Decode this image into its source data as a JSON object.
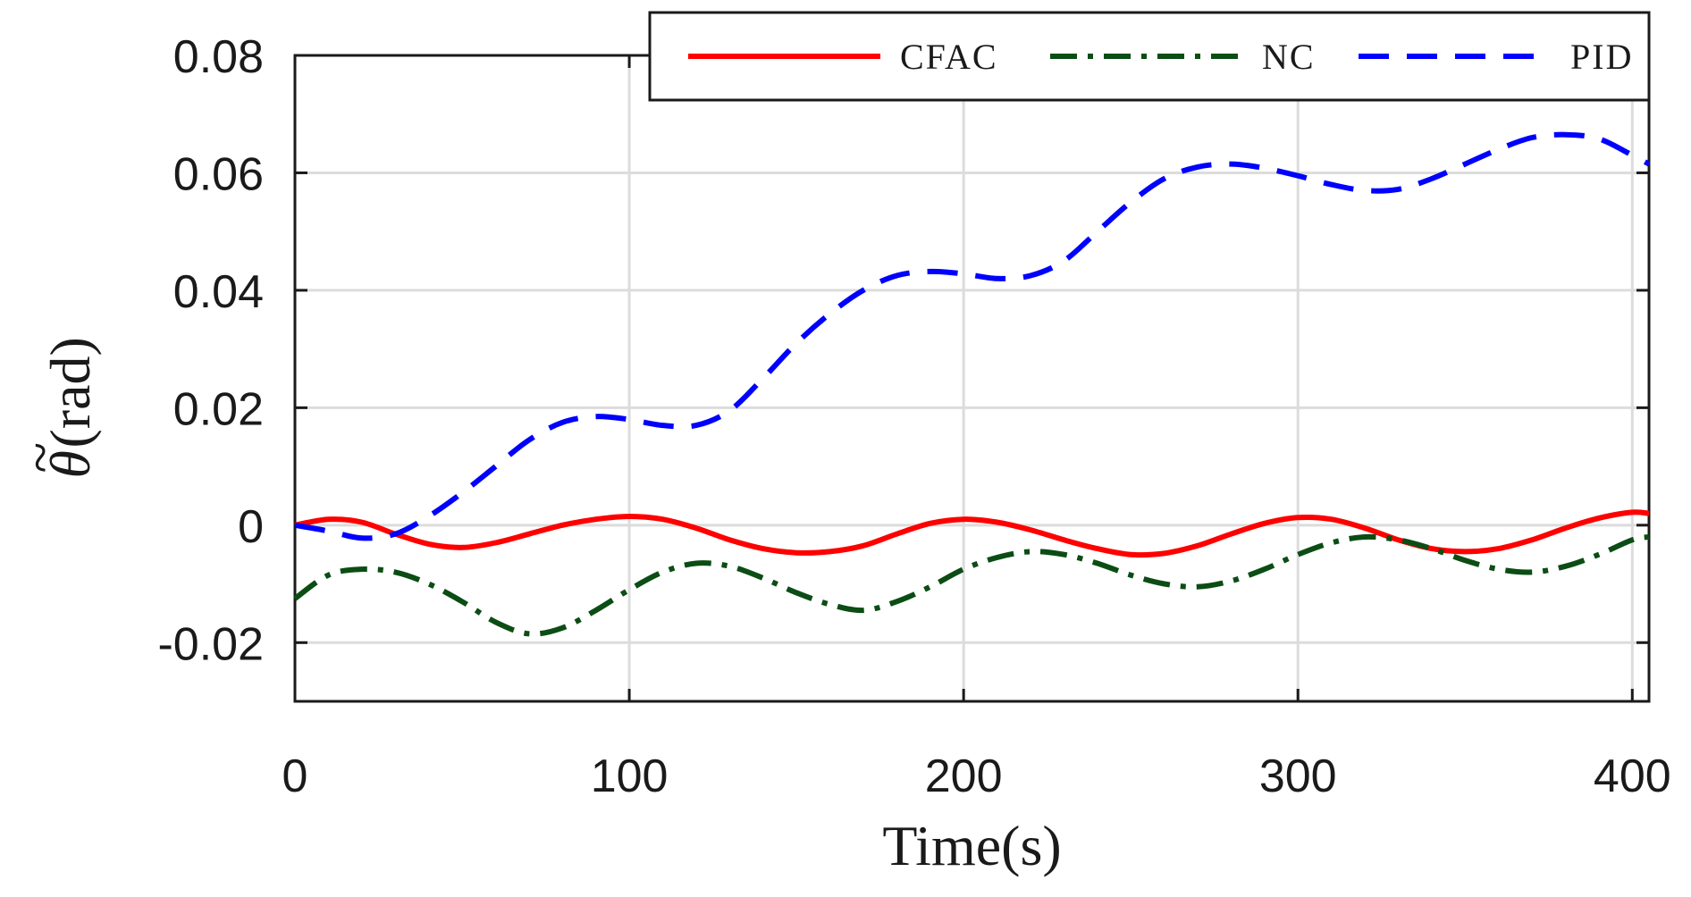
{
  "chart_data": {
    "type": "line",
    "title": "",
    "xlabel": "Time(s)",
    "ylabel": "θ̃(rad)",
    "ylabel_symbol": "θ",
    "ylabel_accent": "~",
    "ylabel_unit": "(rad)",
    "xlim": [
      0,
      405
    ],
    "ylim": [
      -0.03,
      0.08
    ],
    "xticks": [
      0,
      100,
      200,
      300,
      400
    ],
    "xtick_labels": [
      "0",
      "100",
      "200",
      "300",
      "400"
    ],
    "yticks": [
      -0.02,
      0,
      0.02,
      0.04,
      0.06,
      0.08
    ],
    "ytick_labels": [
      "-0.02",
      "0",
      "0.02",
      "0.04",
      "0.06",
      "0.08"
    ],
    "grid": true,
    "legend_position": "top-right",
    "x": [
      0,
      10,
      20,
      30,
      40,
      50,
      60,
      70,
      80,
      90,
      100,
      110,
      120,
      130,
      140,
      150,
      160,
      170,
      180,
      190,
      200,
      210,
      220,
      230,
      240,
      250,
      260,
      270,
      280,
      290,
      300,
      310,
      320,
      330,
      340,
      350,
      360,
      370,
      380,
      390,
      400,
      405
    ],
    "series": [
      {
        "name": "CFAC",
        "color": "#ff0000",
        "dash": "solid",
        "values": [
          0.0,
          0.001,
          0.0005,
          -0.0015,
          -0.0032,
          -0.0038,
          -0.003,
          -0.0015,
          0.0,
          0.001,
          0.0015,
          0.001,
          -0.0005,
          -0.0025,
          -0.004,
          -0.0047,
          -0.0045,
          -0.0035,
          -0.0015,
          0.0003,
          0.001,
          0.0005,
          -0.0008,
          -0.0025,
          -0.004,
          -0.005,
          -0.0048,
          -0.0035,
          -0.0015,
          0.0003,
          0.0013,
          0.001,
          -0.0005,
          -0.0025,
          -0.004,
          -0.0045,
          -0.004,
          -0.0025,
          -0.0005,
          0.0012,
          0.0022,
          0.002
        ]
      },
      {
        "name": "NC",
        "color": "#0b4d14",
        "dash": "dashdot",
        "values": [
          -0.0125,
          -0.0085,
          -0.0075,
          -0.008,
          -0.01,
          -0.013,
          -0.0165,
          -0.0185,
          -0.0175,
          -0.0145,
          -0.011,
          -0.008,
          -0.0065,
          -0.007,
          -0.009,
          -0.0115,
          -0.0135,
          -0.0145,
          -0.013,
          -0.0105,
          -0.0075,
          -0.0055,
          -0.0045,
          -0.005,
          -0.0065,
          -0.0085,
          -0.01,
          -0.0105,
          -0.0095,
          -0.0075,
          -0.005,
          -0.003,
          -0.002,
          -0.0025,
          -0.004,
          -0.006,
          -0.0075,
          -0.008,
          -0.007,
          -0.005,
          -0.0025,
          -0.002
        ]
      },
      {
        "name": "PID",
        "color": "#0000ff",
        "dash": "dashed",
        "values": [
          0.0,
          -0.001,
          -0.0022,
          -0.0015,
          0.0015,
          0.0055,
          0.01,
          0.0145,
          0.0175,
          0.0185,
          0.018,
          0.017,
          0.017,
          0.0195,
          0.025,
          0.031,
          0.036,
          0.04,
          0.0425,
          0.0432,
          0.0428,
          0.042,
          0.0425,
          0.045,
          0.05,
          0.055,
          0.059,
          0.061,
          0.0615,
          0.0608,
          0.0595,
          0.058,
          0.057,
          0.0572,
          0.059,
          0.0615,
          0.064,
          0.066,
          0.0665,
          0.0658,
          0.063,
          0.0615
        ]
      }
    ]
  }
}
